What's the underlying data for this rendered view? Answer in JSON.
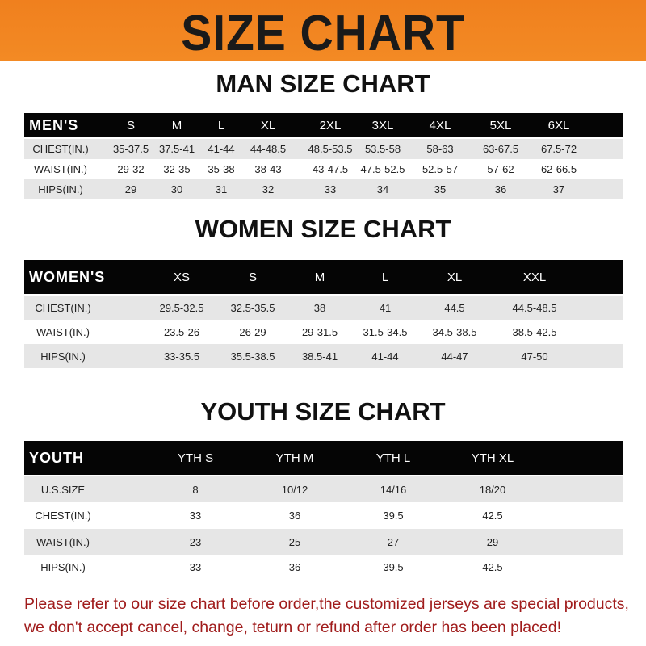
{
  "banner_title": "SIZE CHART",
  "men": {
    "title": "MAN SIZE CHART",
    "header": [
      "MEN'S",
      "S",
      "M",
      "L",
      "XL",
      "2XL",
      "3XL",
      "4XL",
      "5XL",
      "6XL"
    ],
    "rows": [
      [
        "CHEST(IN.)",
        "35-37.5",
        "37.5-41",
        "41-44",
        "44-48.5",
        "48.5-53.5",
        "53.5-58",
        "58-63",
        "63-67.5",
        "67.5-72"
      ],
      [
        "WAIST(IN.)",
        "29-32",
        "32-35",
        "35-38",
        "38-43",
        "43-47.5",
        "47.5-52.5",
        "52.5-57",
        "57-62",
        "62-66.5"
      ],
      [
        "HIPS(IN.)",
        "29",
        "30",
        "31",
        "32",
        "33",
        "34",
        "35",
        "36",
        "37"
      ]
    ]
  },
  "women": {
    "title": "WOMEN SIZE CHART",
    "header": [
      "WOMEN'S",
      "XS",
      "S",
      "M",
      "L",
      "XL",
      "XXL"
    ],
    "rows": [
      [
        "CHEST(IN.)",
        "29.5-32.5",
        "32.5-35.5",
        "38",
        "41",
        "44.5",
        "44.5-48.5"
      ],
      [
        "WAIST(IN.)",
        "23.5-26",
        "26-29",
        "29-31.5",
        "31.5-34.5",
        "34.5-38.5",
        "38.5-42.5"
      ],
      [
        "HIPS(IN.)",
        "33-35.5",
        "35.5-38.5",
        "38.5-41",
        "41-44",
        "44-47",
        "47-50"
      ]
    ]
  },
  "youth": {
    "title": "YOUTH SIZE CHART",
    "header": [
      "YOUTH",
      "YTH S",
      "YTH M",
      "YTH L",
      "YTH XL"
    ],
    "rows": [
      [
        "U.S.SIZE",
        "8",
        "10/12",
        "14/16",
        "18/20"
      ],
      [
        "CHEST(IN.)",
        "33",
        "36",
        "39.5",
        "42.5"
      ],
      [
        "WAIST(IN.)",
        "23",
        "25",
        "27",
        "29"
      ],
      [
        "HIPS(IN.)",
        "33",
        "36",
        "39.5",
        "42.5"
      ]
    ]
  },
  "note": [
    "Please refer to our size chart before order,the customized jerseys are special products,",
    "we don't accept cancel, change, teturn or refund after order has been placed!"
  ],
  "colors": {
    "banner": "#f0801e",
    "header_row": "#050505",
    "stripe": "#e6e6e6",
    "note": "#a01c1c"
  }
}
